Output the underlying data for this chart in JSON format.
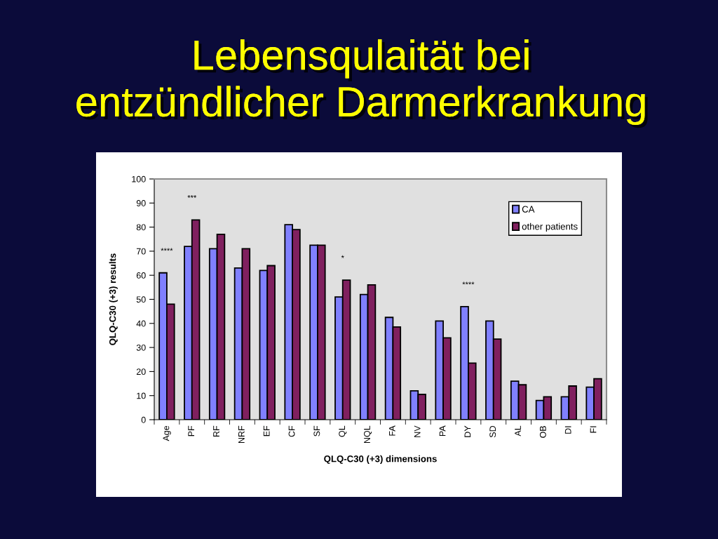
{
  "chart_data": {
    "type": "bar",
    "title": "Lebensqulaität bei\nentzündlicher Darmerkrankung",
    "xlabel": "QLQ-C30 (+3) dimensions",
    "ylabel": "QLQ-C30 (+3) results",
    "categories": [
      "Age",
      "PF",
      "RF",
      "NRF",
      "EF",
      "CF",
      "SF",
      "QL",
      "NQL",
      "FA",
      "NV",
      "PA",
      "DY",
      "SD",
      "AL",
      "OB",
      "DI",
      "FI"
    ],
    "series": [
      {
        "name": "CA",
        "color": "#8080ff",
        "values": [
          61,
          72,
          71,
          63,
          62,
          81,
          72.5,
          51,
          52,
          42.5,
          12,
          41,
          47,
          41,
          16,
          8,
          9.5,
          13.5
        ]
      },
      {
        "name": "other patients",
        "color": "#80205f",
        "values": [
          48,
          83,
          77,
          71,
          64,
          79,
          72.5,
          58,
          56,
          38.5,
          10.5,
          34,
          23.5,
          33.5,
          14.5,
          9.5,
          14,
          17
        ]
      }
    ],
    "ylim": [
      0,
      100
    ],
    "yticks": [
      0,
      10,
      20,
      30,
      40,
      50,
      60,
      70,
      80,
      90,
      100
    ],
    "legend": "top right",
    "annotations": [
      {
        "text": "****",
        "x": "Age",
        "y": 61
      },
      {
        "text": "***",
        "x": "PF",
        "y": 83
      },
      {
        "text": "*",
        "x": "QL",
        "y": 58
      },
      {
        "text": "****",
        "x": "DY",
        "y": 47
      }
    ]
  }
}
